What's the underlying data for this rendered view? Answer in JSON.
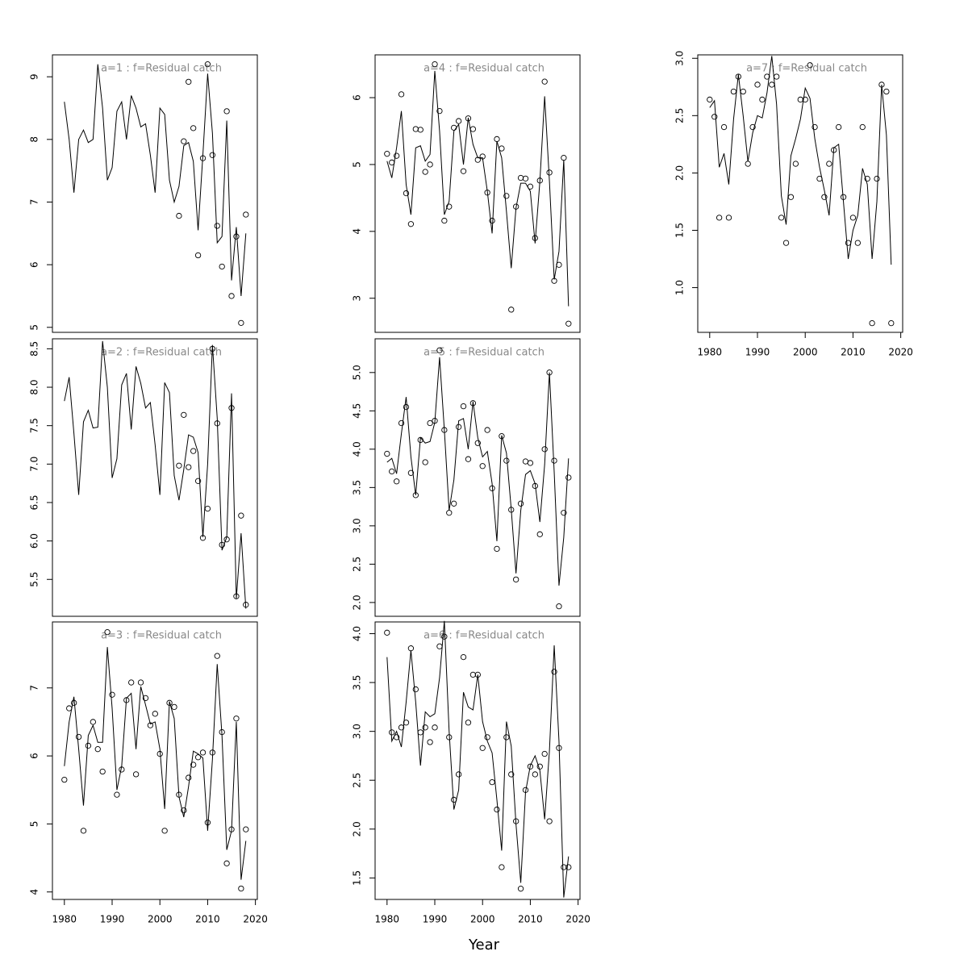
{
  "xlabel": "Year",
  "chart_data": [
    {
      "type": "line",
      "title": "a=1  :  f=Residual catch",
      "x": [
        1980,
        1981,
        1982,
        1983,
        1984,
        1985,
        1986,
        1987,
        1988,
        1989,
        1990,
        1991,
        1992,
        1993,
        1994,
        1995,
        1996,
        1997,
        1998,
        1999,
        2000,
        2001,
        2002,
        2003,
        2004,
        2005,
        2006,
        2007,
        2008,
        2009,
        2010,
        2011,
        2012,
        2013,
        2014,
        2015,
        2016,
        2017,
        2018
      ],
      "xlim": [
        1977.5,
        2020.4
      ],
      "ylim": [
        4.92,
        9.35
      ],
      "yticks": [
        5,
        6,
        7,
        8,
        9
      ],
      "series": [
        {
          "style": "line",
          "color": "#000000",
          "values": [
            8.6,
            8.0,
            7.15,
            8.0,
            8.15,
            7.95,
            8.0,
            9.2,
            8.5,
            7.35,
            7.55,
            8.45,
            8.6,
            8.0,
            8.7,
            8.5,
            8.2,
            8.25,
            7.75,
            7.15,
            8.5,
            8.4,
            7.35,
            7.0,
            7.25,
            7.9,
            7.95,
            7.65,
            6.55,
            7.75,
            9.05,
            8.1,
            6.35,
            6.45,
            8.3,
            5.75,
            6.6,
            5.5,
            6.5
          ]
        },
        {
          "style": "points",
          "color": "#000000",
          "values": [
            null,
            null,
            null,
            null,
            null,
            null,
            null,
            null,
            null,
            null,
            null,
            null,
            null,
            null,
            null,
            null,
            null,
            null,
            null,
            null,
            null,
            null,
            null,
            null,
            6.78,
            7.97,
            8.92,
            8.18,
            6.15,
            7.7,
            9.2,
            7.75,
            6.62,
            5.97,
            8.45,
            5.5,
            6.45,
            5.07,
            6.8
          ]
        }
      ]
    },
    {
      "type": "line",
      "title": "a=2  :  f=Residual catch",
      "x": [
        1980,
        1981,
        1982,
        1983,
        1984,
        1985,
        1986,
        1987,
        1988,
        1989,
        1990,
        1991,
        1992,
        1993,
        1994,
        1995,
        1996,
        1997,
        1998,
        1999,
        2000,
        2001,
        2002,
        2003,
        2004,
        2005,
        2006,
        2007,
        2008,
        2009,
        2010,
        2011,
        2012,
        2013,
        2014,
        2015,
        2016,
        2017,
        2018
      ],
      "xlim": [
        1977.5,
        2020.4
      ],
      "ylim": [
        5.02,
        8.63
      ],
      "yticks": [
        5.5,
        {
          "value": 6,
          "label": "6.0"
        },
        6.5,
        {
          "value": 7,
          "label": "7.0"
        },
        7.5,
        {
          "value": 8,
          "label": "8.0"
        },
        8.5
      ],
      "series": [
        {
          "style": "line",
          "color": "#000000",
          "values": [
            7.82,
            8.13,
            7.4,
            6.6,
            7.55,
            7.7,
            7.47,
            7.48,
            8.6,
            8.0,
            6.82,
            7.07,
            8.03,
            8.18,
            7.45,
            8.27,
            8.05,
            7.73,
            7.8,
            7.25,
            6.6,
            8.06,
            7.93,
            6.85,
            6.53,
            6.93,
            7.38,
            7.35,
            7.15,
            6.05,
            7.0,
            8.55,
            7.6,
            5.88,
            6.05,
            7.92,
            5.25,
            6.1,
            5.12
          ]
        },
        {
          "style": "points",
          "color": "#000000",
          "values": [
            null,
            null,
            null,
            null,
            null,
            null,
            null,
            null,
            null,
            null,
            null,
            null,
            null,
            null,
            null,
            null,
            null,
            null,
            null,
            null,
            null,
            null,
            null,
            null,
            6.98,
            7.64,
            6.96,
            7.17,
            6.78,
            6.04,
            6.42,
            8.5,
            7.53,
            5.95,
            6.02,
            7.73,
            5.28,
            6.33,
            5.17
          ]
        }
      ]
    },
    {
      "type": "line",
      "title": "a=3  :  f=Residual catch",
      "x": [
        1980,
        1981,
        1982,
        1983,
        1984,
        1985,
        1986,
        1987,
        1988,
        1989,
        1990,
        1991,
        1992,
        1993,
        1994,
        1995,
        1996,
        1997,
        1998,
        1999,
        2000,
        2001,
        2002,
        2003,
        2004,
        2005,
        2006,
        2007,
        2008,
        2009,
        2010,
        2011,
        2012,
        2013,
        2014,
        2015,
        2016,
        2017,
        2018
      ],
      "xlim": [
        1977.5,
        2020.4
      ],
      "xticks": [
        1980,
        1990,
        2000,
        2010,
        2020
      ],
      "ylim": [
        3.89,
        7.97
      ],
      "yticks": [
        4,
        5,
        6,
        7
      ],
      "series": [
        {
          "style": "line",
          "color": "#000000",
          "values": [
            5.85,
            6.5,
            6.87,
            6.1,
            5.27,
            6.3,
            6.45,
            6.2,
            6.2,
            7.6,
            6.7,
            5.5,
            5.85,
            6.85,
            6.92,
            6.1,
            7.02,
            6.75,
            6.47,
            6.5,
            6.1,
            5.22,
            6.8,
            6.55,
            5.4,
            5.1,
            5.55,
            6.07,
            6.03,
            5.97,
            4.9,
            5.95,
            7.35,
            6.3,
            4.62,
            4.9,
            6.5,
            4.18,
            4.75
          ]
        },
        {
          "style": "points",
          "color": "#000000",
          "values": [
            5.65,
            6.7,
            6.78,
            6.28,
            4.9,
            6.15,
            6.5,
            6.1,
            5.77,
            7.82,
            6.9,
            5.43,
            5.8,
            6.82,
            7.08,
            5.73,
            7.08,
            6.85,
            6.45,
            6.62,
            6.03,
            4.9,
            6.78,
            6.72,
            5.43,
            5.2,
            5.68,
            5.87,
            5.98,
            6.05,
            5.02,
            6.05,
            7.47,
            6.35,
            4.42,
            4.92,
            6.55,
            4.05,
            4.92
          ]
        }
      ]
    },
    {
      "type": "line",
      "title": "a=4  :  f=Residual catch",
      "x": [
        1980,
        1981,
        1982,
        1983,
        1984,
        1985,
        1986,
        1987,
        1988,
        1989,
        1990,
        1991,
        1992,
        1993,
        1994,
        1995,
        1996,
        1997,
        1998,
        1999,
        2000,
        2001,
        2002,
        2003,
        2004,
        2005,
        2006,
        2007,
        2008,
        2009,
        2010,
        2011,
        2012,
        2013,
        2014,
        2015,
        2016,
        2017,
        2018
      ],
      "xlim": [
        1977.5,
        2020.4
      ],
      "ylim": [
        2.49,
        6.64
      ],
      "yticks": [
        3,
        4,
        5,
        6
      ],
      "series": [
        {
          "style": "line",
          "color": "#000000",
          "values": [
            5.05,
            4.8,
            5.25,
            5.8,
            4.7,
            4.25,
            5.25,
            5.28,
            5.05,
            5.15,
            6.4,
            5.5,
            4.25,
            4.45,
            5.5,
            5.6,
            5.0,
            5.7,
            5.3,
            5.1,
            5.1,
            4.6,
            3.97,
            5.35,
            5.1,
            4.3,
            3.45,
            4.35,
            4.72,
            4.72,
            4.6,
            3.82,
            4.75,
            6.02,
            4.75,
            3.28,
            3.7,
            5.07,
            2.88
          ]
        },
        {
          "style": "points",
          "color": "#000000",
          "values": [
            5.16,
            5.03,
            5.13,
            6.05,
            4.57,
            4.11,
            5.53,
            5.52,
            4.89,
            5.0,
            6.5,
            5.8,
            4.16,
            4.37,
            5.55,
            5.65,
            4.9,
            5.69,
            5.53,
            5.07,
            5.12,
            4.58,
            4.16,
            5.38,
            5.24,
            4.53,
            2.83,
            4.37,
            4.8,
            4.79,
            4.67,
            3.9,
            4.76,
            6.24,
            4.88,
            3.26,
            3.5,
            5.1,
            2.62
          ]
        }
      ]
    },
    {
      "type": "line",
      "title": "a=5  :  f=Residual catch",
      "x": [
        1980,
        1981,
        1982,
        1983,
        1984,
        1985,
        1986,
        1987,
        1988,
        1989,
        1990,
        1991,
        1992,
        1993,
        1994,
        1995,
        1996,
        1997,
        1998,
        1999,
        2000,
        2001,
        2002,
        2003,
        2004,
        2005,
        2006,
        2007,
        2008,
        2009,
        2010,
        2011,
        2012,
        2013,
        2014,
        2015,
        2016,
        2017,
        2018
      ],
      "xlim": [
        1977.5,
        2020.4
      ],
      "ylim": [
        1.82,
        5.44
      ],
      "yticks": [
        {
          "value": 2,
          "label": "2.0"
        },
        2.5,
        {
          "value": 3,
          "label": "3.0"
        },
        3.5,
        {
          "value": 4,
          "label": "4.0"
        },
        4.5,
        {
          "value": 5,
          "label": "5.0"
        }
      ],
      "series": [
        {
          "style": "line",
          "color": "#000000",
          "values": [
            3.83,
            3.88,
            3.68,
            4.2,
            4.68,
            3.9,
            3.4,
            4.15,
            4.08,
            4.1,
            4.35,
            5.2,
            4.25,
            3.2,
            3.6,
            4.37,
            4.4,
            4.0,
            4.62,
            4.15,
            3.9,
            3.97,
            3.55,
            2.8,
            4.18,
            3.95,
            3.22,
            2.38,
            3.2,
            3.67,
            3.72,
            3.55,
            3.05,
            3.8,
            5.0,
            3.7,
            2.22,
            2.85,
            3.88
          ]
        },
        {
          "style": "points",
          "color": "#000000",
          "values": [
            3.94,
            3.71,
            3.58,
            4.34,
            4.55,
            3.69,
            3.4,
            4.12,
            3.83,
            4.34,
            4.37,
            5.29,
            4.25,
            3.17,
            3.29,
            4.29,
            4.56,
            3.87,
            4.6,
            4.08,
            3.78,
            4.25,
            3.49,
            2.7,
            4.17,
            3.85,
            3.21,
            2.3,
            3.29,
            3.84,
            3.82,
            3.52,
            2.89,
            4.0,
            5.0,
            3.85,
            1.95,
            3.17,
            3.63
          ]
        }
      ]
    },
    {
      "type": "line",
      "title": "a=6  :  f=Residual catch",
      "x": [
        1980,
        1981,
        1982,
        1983,
        1984,
        1985,
        1986,
        1987,
        1988,
        1989,
        1990,
        1991,
        1992,
        1993,
        1994,
        1995,
        1996,
        1997,
        1998,
        1999,
        2000,
        2001,
        2002,
        2003,
        2004,
        2005,
        2006,
        2007,
        2008,
        2009,
        2010,
        2011,
        2012,
        2013,
        2014,
        2015,
        2016,
        2017,
        2018
      ],
      "xlim": [
        1977.5,
        2020.4
      ],
      "xticks": [
        1980,
        1990,
        2000,
        2010,
        2020
      ],
      "ylim": [
        1.28,
        4.12
      ],
      "yticks": [
        1.5,
        {
          "value": 2,
          "label": "2.0"
        },
        2.5,
        {
          "value": 3,
          "label": "3.0"
        },
        3.5,
        {
          "value": 4,
          "label": "4.0"
        }
      ],
      "series": [
        {
          "style": "line",
          "color": "#000000",
          "values": [
            3.76,
            2.9,
            3.0,
            2.84,
            3.3,
            3.83,
            3.3,
            2.65,
            3.2,
            3.15,
            3.18,
            3.55,
            4.13,
            3.0,
            2.2,
            2.4,
            3.4,
            3.25,
            3.22,
            3.58,
            3.1,
            2.9,
            2.78,
            2.3,
            1.78,
            3.1,
            2.85,
            2.05,
            1.45,
            2.38,
            2.65,
            2.75,
            2.6,
            2.1,
            2.8,
            3.88,
            2.9,
            1.3,
            1.72
          ]
        },
        {
          "style": "points",
          "color": "#000000",
          "values": [
            4.01,
            2.99,
            2.94,
            3.04,
            3.09,
            3.85,
            3.43,
            2.99,
            3.04,
            2.89,
            3.04,
            3.87,
            3.97,
            2.94,
            2.3,
            2.56,
            3.76,
            3.09,
            3.58,
            3.58,
            2.83,
            2.94,
            2.48,
            2.2,
            1.61,
            2.94,
            2.56,
            2.08,
            1.39,
            2.4,
            2.64,
            2.56,
            2.64,
            2.77,
            2.08,
            3.61,
            2.83,
            1.61,
            1.61
          ]
        }
      ]
    },
    {
      "type": "line",
      "title": "a=7  :  f=Residual catch",
      "x": [
        1980,
        1981,
        1982,
        1983,
        1984,
        1985,
        1986,
        1987,
        1988,
        1989,
        1990,
        1991,
        1992,
        1993,
        1994,
        1995,
        1996,
        1997,
        1998,
        1999,
        2000,
        2001,
        2002,
        2003,
        2004,
        2005,
        2006,
        2007,
        2008,
        2009,
        2010,
        2011,
        2012,
        2013,
        2014,
        2015,
        2016,
        2017,
        2018
      ],
      "xlim": [
        1977.5,
        2020.4
      ],
      "xticks": [
        1980,
        1990,
        2000,
        2010,
        2020
      ],
      "ylim": [
        0.61,
        3.03
      ],
      "yticks": [
        {
          "value": 1,
          "label": "1.0"
        },
        1.5,
        {
          "value": 2,
          "label": "2.0"
        },
        2.5,
        {
          "value": 3,
          "label": "3.0"
        }
      ],
      "series": [
        {
          "style": "line",
          "color": "#000000",
          "values": [
            2.57,
            2.63,
            2.05,
            2.17,
            1.9,
            2.47,
            2.86,
            2.5,
            2.1,
            2.35,
            2.5,
            2.48,
            2.7,
            3.02,
            2.6,
            1.8,
            1.55,
            2.15,
            2.3,
            2.47,
            2.74,
            2.65,
            2.3,
            2.05,
            1.85,
            1.63,
            2.22,
            2.25,
            1.75,
            1.25,
            1.5,
            1.63,
            2.04,
            1.9,
            1.25,
            1.75,
            2.77,
            2.33,
            1.2
          ]
        },
        {
          "style": "points",
          "color": "#000000",
          "values": [
            2.64,
            2.49,
            1.61,
            2.4,
            1.61,
            2.71,
            2.84,
            2.71,
            2.08,
            2.4,
            2.77,
            2.64,
            2.84,
            2.77,
            2.84,
            1.61,
            1.39,
            1.79,
            2.08,
            2.64,
            2.64,
            2.94,
            2.4,
            1.95,
            1.79,
            2.08,
            2.2,
            2.4,
            1.79,
            1.39,
            1.61,
            1.39,
            2.4,
            1.95,
            0.69,
            1.95,
            2.77,
            2.71,
            0.69
          ]
        }
      ]
    }
  ]
}
